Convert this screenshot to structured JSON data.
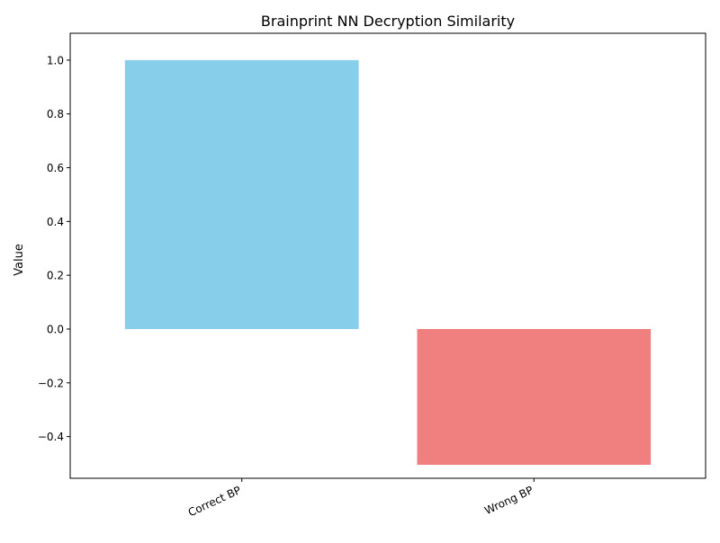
{
  "chart_data": {
    "type": "bar",
    "title": "Brainprint NN Decryption Similarity",
    "xlabel": "",
    "ylabel": "Value",
    "categories": [
      "Correct BP",
      "Wrong BP"
    ],
    "values": [
      1.0,
      -0.505
    ],
    "colors": [
      "#87ceeb",
      "#f08080"
    ],
    "ylim": [
      -0.555,
      1.1
    ],
    "yticks": [
      -0.4,
      -0.2,
      0.0,
      0.2,
      0.4,
      0.6,
      0.8,
      1.0
    ],
    "ytick_labels": [
      "−0.4",
      "−0.2",
      "0.0",
      "0.2",
      "0.4",
      "0.6",
      "0.8",
      "1.0"
    ],
    "grid": false,
    "legend": "none"
  }
}
